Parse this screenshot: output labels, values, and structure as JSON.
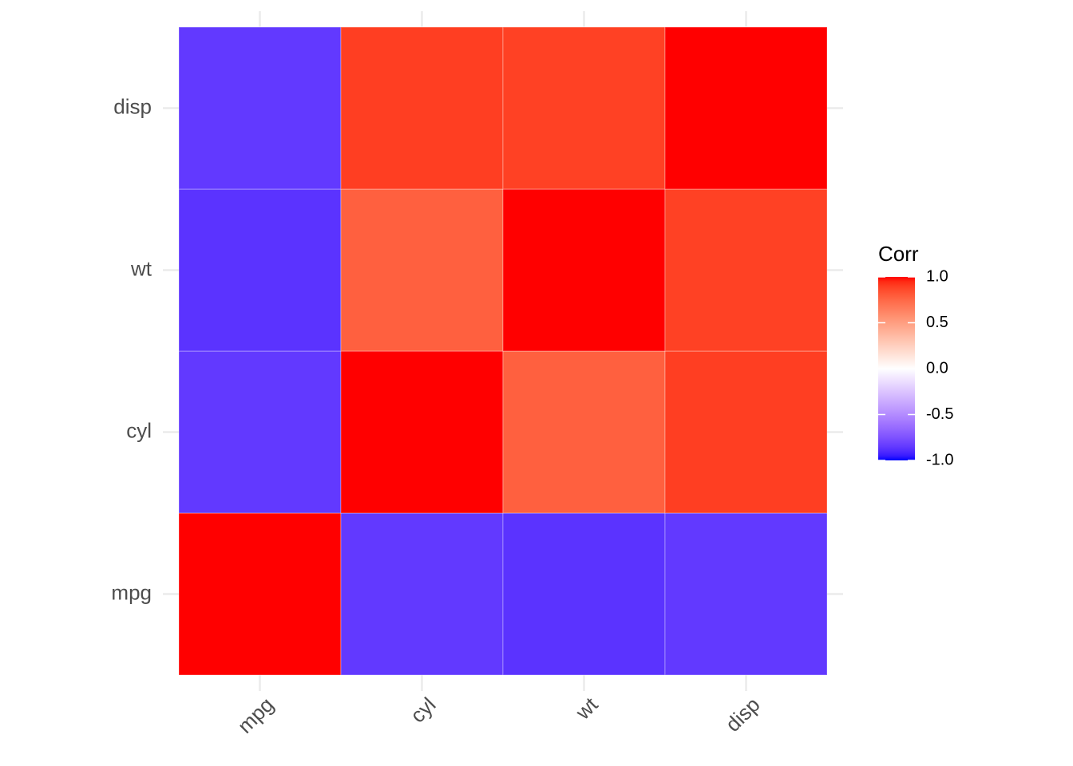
{
  "chart_data": {
    "type": "heatmap",
    "x_categories": [
      "mpg",
      "cyl",
      "wt",
      "disp"
    ],
    "y_categories": [
      "mpg",
      "cyl",
      "wt",
      "disp"
    ],
    "values": [
      [
        1,
        -0.85,
        -0.87,
        -0.85
      ],
      [
        -0.85,
        1,
        0.78,
        0.9
      ],
      [
        -0.87,
        0.78,
        1,
        0.89
      ],
      [
        -0.85,
        0.9,
        0.89,
        1
      ]
    ],
    "grid": true,
    "legend": {
      "title": "Corr",
      "low": "#0000ff",
      "mid": "#ffffff",
      "high": "#ff0000",
      "zlim": [
        -1,
        1
      ],
      "ticks": [
        {
          "value": -1,
          "label": "-1.0"
        },
        {
          "value": -0.5,
          "label": "-0.5"
        },
        {
          "value": 0,
          "label": "0.0"
        },
        {
          "value": 0.5,
          "label": "0.5"
        },
        {
          "value": 1,
          "label": "1.0"
        }
      ]
    }
  }
}
